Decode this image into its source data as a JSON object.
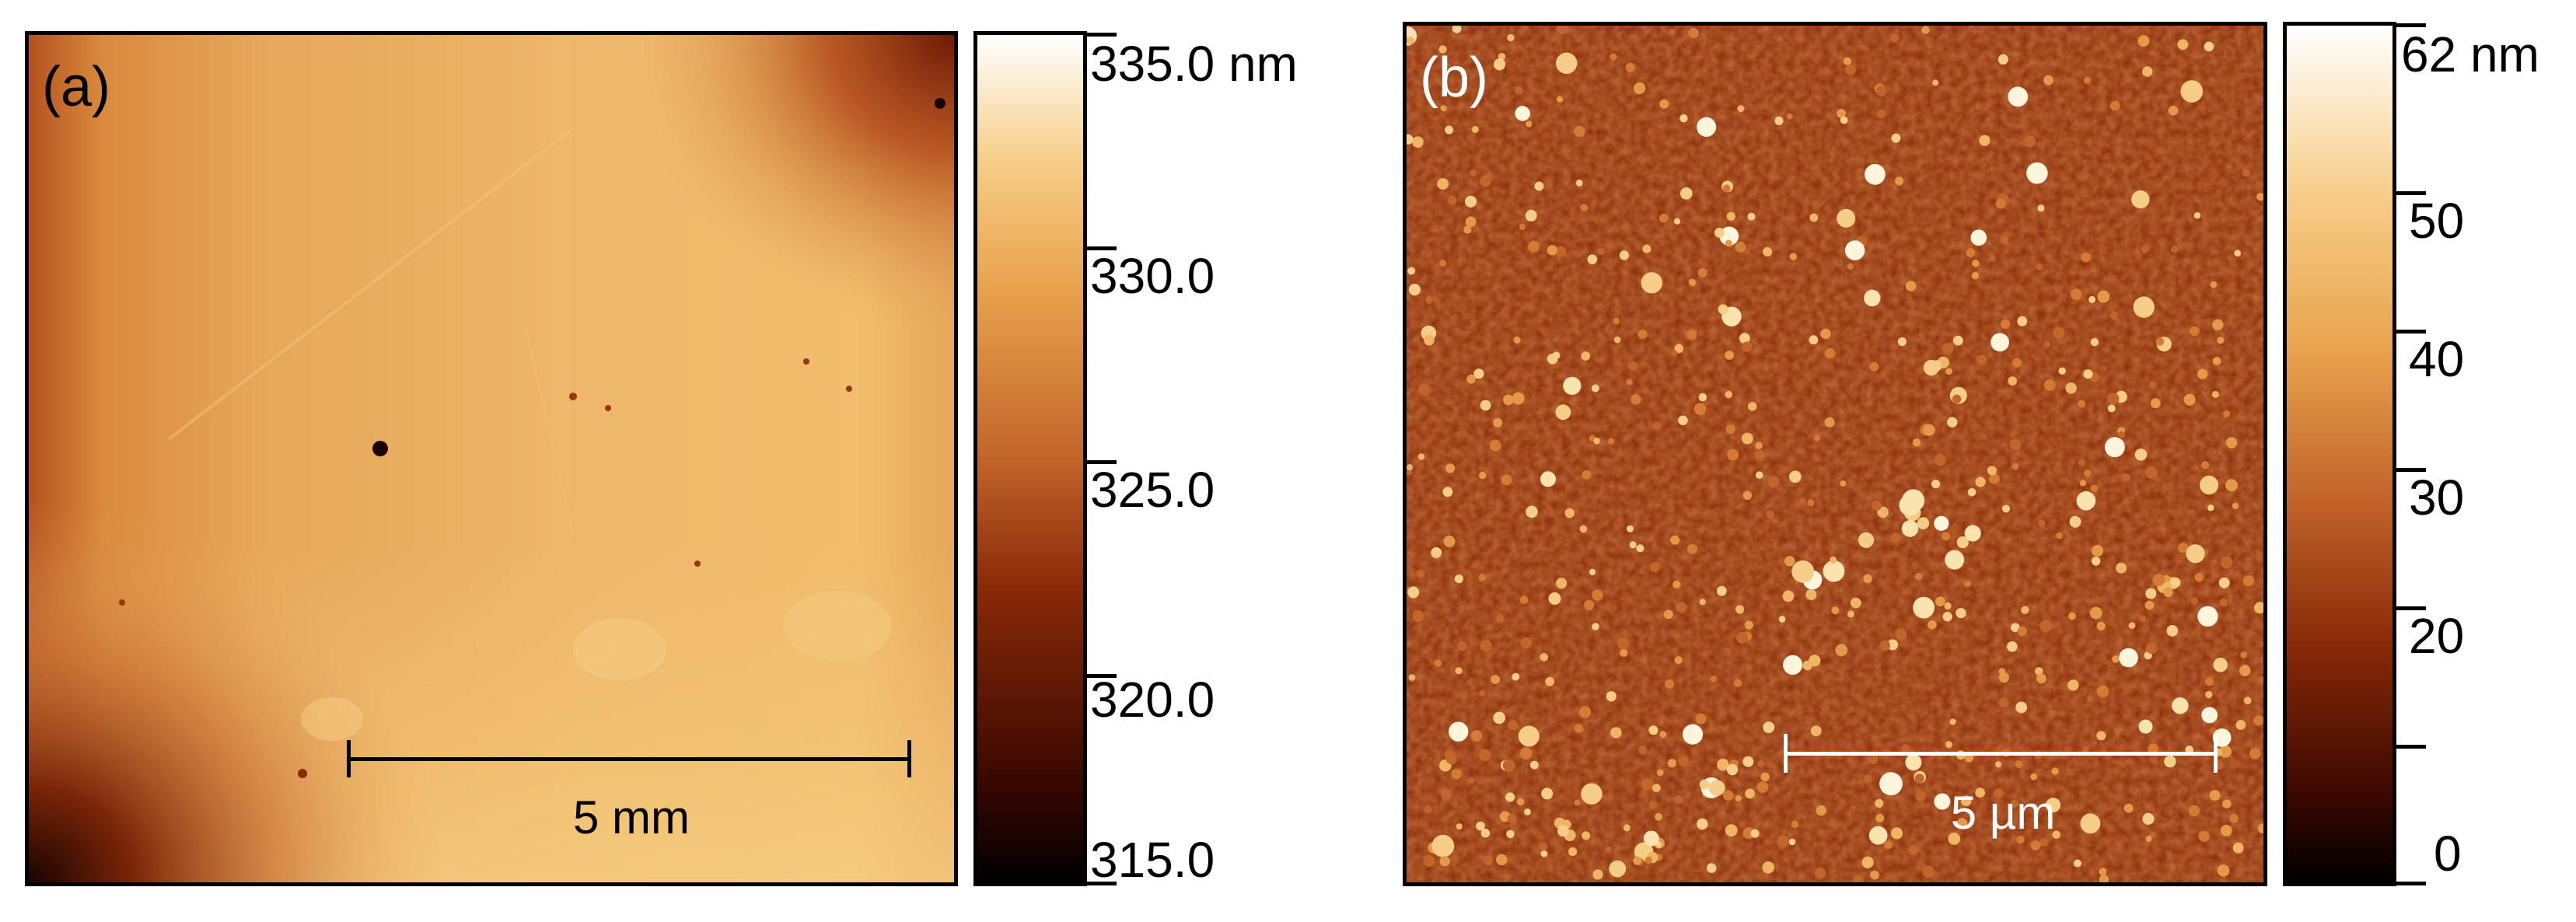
{
  "panel_a": {
    "label": "(a)",
    "scale_bar": "5 mm",
    "colorbar_labels": [
      "335.0 nm",
      "330.0",
      "325.0",
      "320.0",
      "315.0"
    ]
  },
  "panel_b": {
    "label": "(b)",
    "scale_bar": "5 µm",
    "colorbar_labels": [
      "62 nm",
      "50",
      "40",
      "30",
      "20",
      "0"
    ]
  },
  "colors": {
    "afm_dark": "#000000",
    "afm_mid": "#b5441a",
    "afm_light": "#f3c16a",
    "afm_white": "#ffffff"
  }
}
